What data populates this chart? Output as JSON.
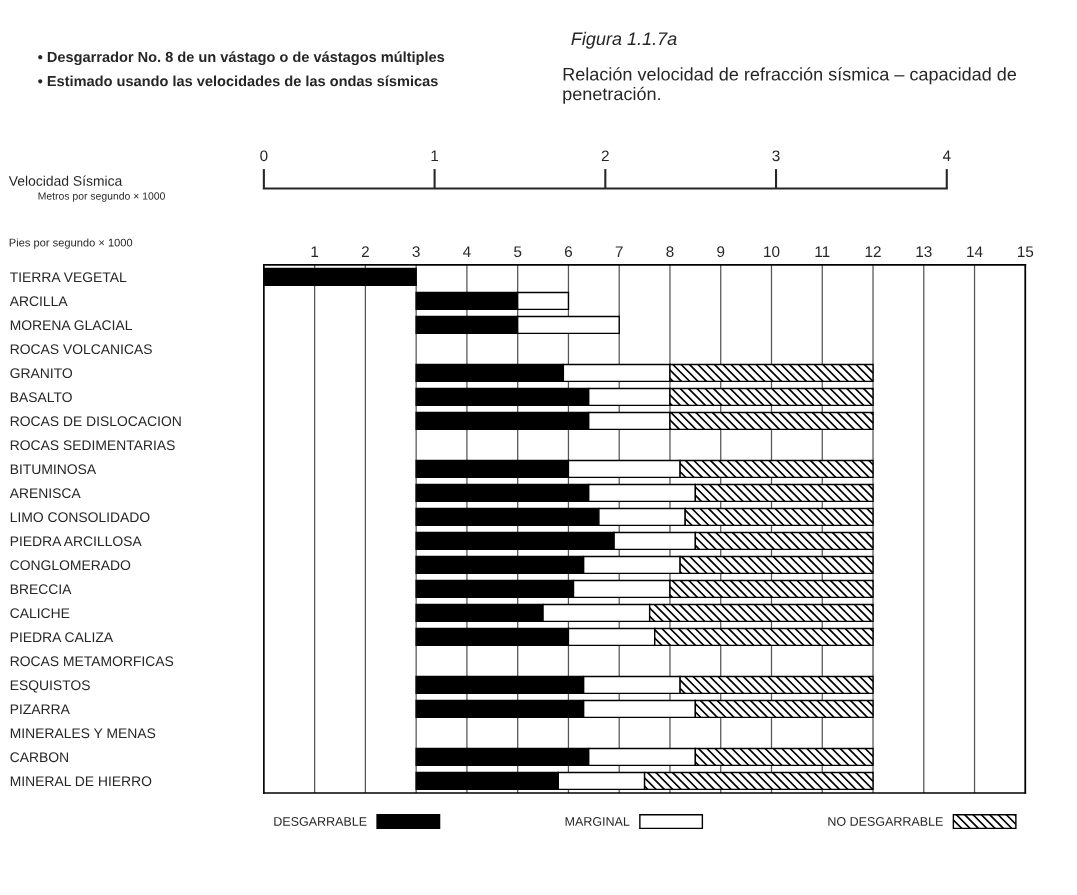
{
  "chart_data": {
    "type": "bar",
    "orientation": "horizontal",
    "title": "Figura 1.1.7a",
    "subtitle": "Relación velocidad de refracción sísmica – capacidad de penetración.",
    "annotations": [
      "• Desgarrador No. 8 de un vástago o de vástagos múltiples",
      "• Estimado usando las velocidades de las ondas sísmicas",
      "Metros por segundo × 1000"
    ],
    "xlabel": "Pies por segundo × 1000",
    "x2label": "Velocidad Sísmica",
    "categories": [
      "TIERRA VEGETAL",
      "ARCILLA",
      "MORENA GLACIAL",
      "ROCAS VOLCANICAS",
      "GRANITO",
      "BASALTO",
      "ROCAS DE DISLOCACION",
      "ROCAS SEDIMENTARIAS",
      "BITUMINOSA",
      "ARENISCA",
      "LIMO CONSOLIDADO",
      "PIEDRA ARCILLOSA",
      "CONGLOMERADO",
      "BRECCIA",
      "CALICHE",
      "PIEDRA CALIZA",
      "ROCAS METAMORFICAS",
      "ESQUISTOS",
      "PIZARRA",
      "MINERALES Y MENAS",
      "CARBON",
      "MINERAL DE HIERRO"
    ],
    "series": [
      {
        "name": "DESGARRABLE",
        "color": "#000000",
        "base": [
          0,
          3,
          3,
          null,
          3,
          3,
          3,
          null,
          3,
          3,
          3,
          3,
          3,
          3,
          3,
          3,
          null,
          3,
          3,
          null,
          3,
          3
        ],
        "values": [
          3,
          2,
          2,
          null,
          2.9,
          3.4,
          3.4,
          null,
          3.0,
          3.4,
          3.6,
          3.9,
          3.3,
          3.1,
          2.5,
          3.0,
          null,
          3.3,
          3.3,
          null,
          3.4,
          2.8
        ]
      },
      {
        "name": "MARGINAL",
        "color": "#ffffff",
        "base": [
          null,
          5,
          5,
          null,
          5.9,
          6.4,
          6.4,
          null,
          6.0,
          6.4,
          6.6,
          6.9,
          6.3,
          6.1,
          5.5,
          6.0,
          null,
          6.3,
          6.3,
          null,
          6.4,
          5.8
        ],
        "values": [
          null,
          1,
          2,
          null,
          2.1,
          1.6,
          1.6,
          null,
          2.2,
          2.1,
          1.7,
          1.6,
          1.9,
          1.9,
          2.1,
          1.7,
          null,
          1.9,
          2.2,
          null,
          2.1,
          1.7
        ]
      },
      {
        "name": "NO DESGARRABLE",
        "color": "#000000",
        "base": [
          null,
          null,
          null,
          null,
          8.0,
          8.0,
          8.0,
          null,
          8.2,
          8.5,
          8.3,
          8.5,
          8.2,
          8.0,
          7.6,
          7.7,
          null,
          8.2,
          8.5,
          null,
          8.5,
          7.5
        ],
        "values": [
          null,
          null,
          null,
          null,
          4.0,
          4.0,
          4.0,
          null,
          3.8,
          3.5,
          3.7,
          3.5,
          3.8,
          4.0,
          4.4,
          4.3,
          null,
          3.8,
          3.5,
          null,
          3.5,
          4.5
        ]
      }
    ],
    "xlim": [
      0,
      15
    ],
    "xticks": [
      1,
      2,
      3,
      4,
      5,
      6,
      7,
      8,
      9,
      10,
      11,
      12,
      13,
      14,
      15
    ],
    "x2lim": [
      0,
      4.46
    ],
    "x2ticks": [
      0,
      1,
      2,
      3,
      4
    ],
    "grid": "x",
    "legend": "bottom"
  }
}
